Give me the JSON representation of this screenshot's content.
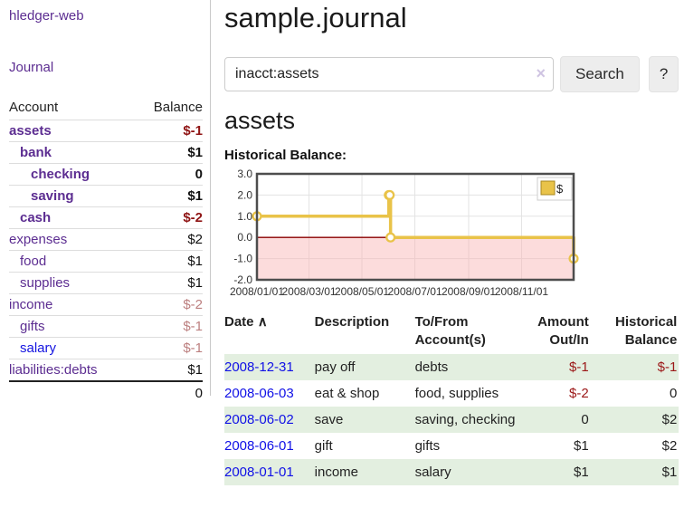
{
  "app": {
    "title": "hledger-web"
  },
  "sidebar": {
    "journal_label": "Journal",
    "accounts_table": {
      "headers": {
        "account": "Account",
        "balance": "Balance"
      },
      "rows": [
        {
          "name": "assets",
          "indent": 0,
          "bold": true,
          "blue": false,
          "balance": "$-1",
          "balance_class": "neg-strong"
        },
        {
          "name": "bank",
          "indent": 1,
          "bold": true,
          "blue": false,
          "balance": "$1",
          "balance_class": "plain"
        },
        {
          "name": "checking",
          "indent": 2,
          "bold": true,
          "blue": false,
          "balance": "0",
          "balance_class": "plain"
        },
        {
          "name": "saving",
          "indent": 2,
          "bold": true,
          "blue": false,
          "balance": "$1",
          "balance_class": "plain"
        },
        {
          "name": "cash",
          "indent": 1,
          "bold": true,
          "blue": false,
          "balance": "$-2",
          "balance_class": "neg-strong"
        },
        {
          "name": "expenses",
          "indent": 0,
          "bold": false,
          "blue": false,
          "balance": "$2",
          "balance_class": "plain"
        },
        {
          "name": "food",
          "indent": 1,
          "bold": false,
          "blue": false,
          "balance": "$1",
          "balance_class": "plain"
        },
        {
          "name": "supplies",
          "indent": 1,
          "bold": false,
          "blue": false,
          "balance": "$1",
          "balance_class": "plain"
        },
        {
          "name": "income",
          "indent": 0,
          "bold": false,
          "blue": false,
          "balance": "$-2",
          "balance_class": "neg-soft"
        },
        {
          "name": "gifts",
          "indent": 1,
          "bold": false,
          "blue": false,
          "balance": "$-1",
          "balance_class": "neg-soft"
        },
        {
          "name": "salary",
          "indent": 1,
          "bold": false,
          "blue": true,
          "balance": "$-1",
          "balance_class": "neg-soft"
        },
        {
          "name": "liabilities:debts",
          "indent": 0,
          "bold": false,
          "blue": false,
          "balance": "$1",
          "balance_class": "plain"
        }
      ],
      "total": "0"
    }
  },
  "main": {
    "title": "sample.journal",
    "search": {
      "value": "inacct:assets",
      "clear_icon": "×",
      "button_label": "Search",
      "help_label": "?"
    },
    "account_heading": "assets",
    "chart_label": "Historical Balance:"
  },
  "chart_data": {
    "type": "line",
    "step": true,
    "title": "Historical Balance:",
    "x_start": "2008-01-01",
    "x_end": "2008-12-31",
    "x_ticks": [
      "2008/01/01",
      "2008/03/01",
      "2008/05/01",
      "2008/07/01",
      "2008/09/01",
      "2008/11/01"
    ],
    "y_ticks": [
      "3.0",
      "2.0",
      "1.0",
      "0.0",
      "-1.0",
      "-2.0"
    ],
    "ylim": [
      -2,
      3
    ],
    "grid": true,
    "legend_position": "top-right",
    "legend_label": "$",
    "colors": {
      "line": "#e9c349",
      "legend_square_border": "#a8871f",
      "negative_fill": "rgba(248,178,178,0.45)",
      "zero_line": "#8b0000",
      "grid": "#e3e3e3",
      "border": "#4d4d4d",
      "tick_text": "#333333"
    },
    "series": [
      {
        "name": "$",
        "points": [
          {
            "x": "2008-01-01",
            "y": 1
          },
          {
            "x": "2008-06-01",
            "y": 2
          },
          {
            "x": "2008-06-02",
            "y": 2
          },
          {
            "x": "2008-06-03",
            "y": 0
          },
          {
            "x": "2008-12-31",
            "y": -1
          }
        ]
      }
    ]
  },
  "transactions": {
    "headers": {
      "date": "Date",
      "sort_icon": "∧",
      "description": "Description",
      "accounts": "To/From Account(s)",
      "amount": "Amount Out/In",
      "balance": "Historical Balance"
    },
    "rows": [
      {
        "date": "2008-12-31",
        "description": "pay off",
        "accounts": "debts",
        "amount": "$-1",
        "amount_neg": true,
        "balance": "$-1",
        "balance_neg": true,
        "shaded": true
      },
      {
        "date": "2008-06-03",
        "description": "eat & shop",
        "accounts": "food, supplies",
        "amount": "$-2",
        "amount_neg": true,
        "balance": "0",
        "balance_neg": false,
        "shaded": false
      },
      {
        "date": "2008-06-02",
        "description": "save",
        "accounts": "saving, checking",
        "amount": "0",
        "amount_neg": false,
        "balance": "$2",
        "balance_neg": false,
        "shaded": true
      },
      {
        "date": "2008-06-01",
        "description": "gift",
        "accounts": "gifts",
        "amount": "$1",
        "amount_neg": false,
        "balance": "$2",
        "balance_neg": false,
        "shaded": false
      },
      {
        "date": "2008-01-01",
        "description": "income",
        "accounts": "salary",
        "amount": "$1",
        "amount_neg": false,
        "balance": "$1",
        "balance_neg": false,
        "shaded": true
      }
    ]
  }
}
